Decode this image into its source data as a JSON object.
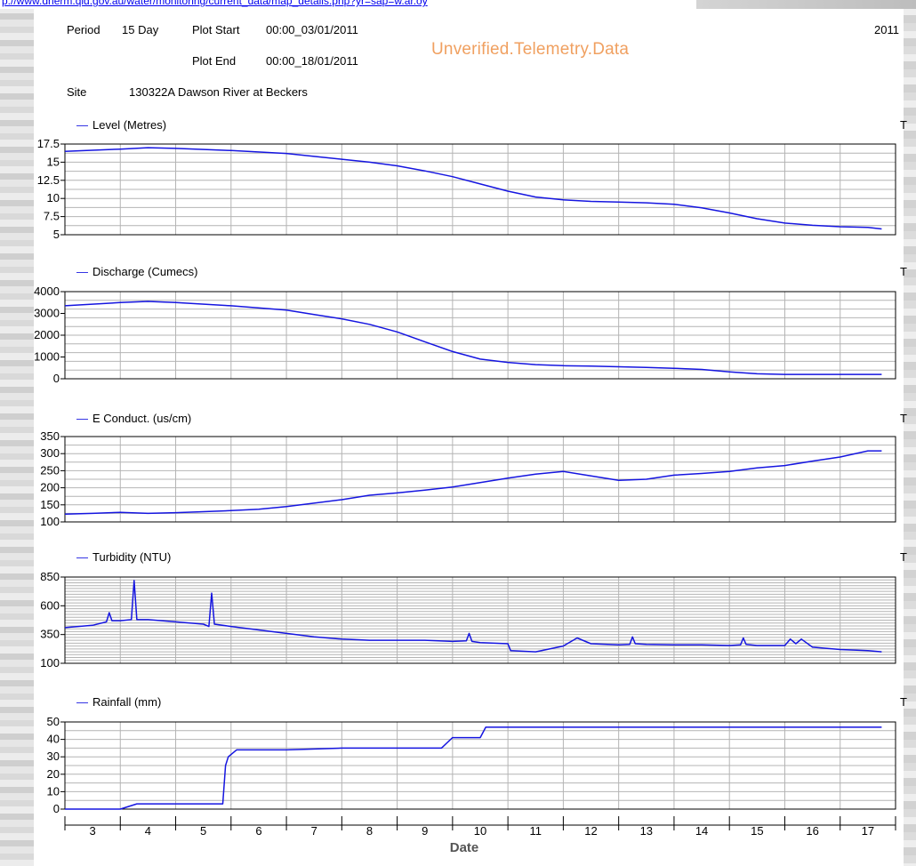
{
  "page": {
    "url_fragment": "p://www.dnerm.qld.gov.au/water/monitoring/current_data/map_details.php?yr=sap=w.ar.oy",
    "watermark": "Unverified.Telemetry.Data",
    "year": "2011",
    "period_label": "Period",
    "period_value": "15 Day",
    "plot_start_label": "Plot Start",
    "plot_start_value": "00:00_03/01/2011",
    "plot_end_label": "Plot End",
    "plot_end_value": "00:00_18/01/2011",
    "site_label": "Site",
    "site_value": "130322A  Dawson River at Beckers",
    "panel_marker": "T",
    "legend_dash": "—",
    "colors": {
      "line": "#1515e0",
      "grid": "#b4b4b4",
      "frame": "#000000",
      "watermark": "#f0a060",
      "link": "#0000ee"
    }
  },
  "chart_data": [
    {
      "type": "line",
      "series_name": "Level (Metres)",
      "ylim": [
        5,
        17.5
      ],
      "yticks": [
        5,
        7.5,
        10,
        12.5,
        15,
        17.5
      ],
      "ytick_labels": [
        "5",
        "7.5",
        "10",
        "12.5",
        "15",
        "17.5"
      ],
      "xlim": [
        3,
        18
      ],
      "x": [
        3.0,
        4.0,
        4.5,
        5.0,
        6.0,
        7.0,
        7.5,
        8.0,
        8.5,
        9.0,
        9.5,
        10.0,
        10.5,
        11.0,
        11.5,
        12.0,
        12.5,
        13.0,
        13.5,
        14.0,
        14.5,
        15.0,
        15.5,
        16.0,
        16.5,
        17.0,
        17.5,
        17.75
      ],
      "y": [
        16.5,
        16.8,
        17.0,
        16.9,
        16.6,
        16.2,
        15.8,
        15.4,
        15.0,
        14.5,
        13.8,
        13.0,
        12.0,
        11.0,
        10.2,
        9.8,
        9.6,
        9.5,
        9.4,
        9.2,
        8.7,
        8.0,
        7.2,
        6.6,
        6.3,
        6.1,
        6.0,
        5.8
      ]
    },
    {
      "type": "line",
      "series_name": "Discharge (Cumecs)",
      "ylim": [
        0,
        4000
      ],
      "yticks": [
        0,
        1000,
        2000,
        3000,
        4000
      ],
      "ytick_labels": [
        "0",
        "1000",
        "2000",
        "3000",
        "4000"
      ],
      "xlim": [
        3,
        18
      ],
      "x": [
        3.0,
        4.0,
        4.5,
        5.0,
        6.0,
        7.0,
        7.5,
        8.0,
        8.5,
        9.0,
        9.5,
        10.0,
        10.5,
        11.0,
        11.5,
        12.0,
        12.5,
        13.0,
        13.5,
        14.0,
        14.5,
        15.0,
        15.5,
        16.0,
        16.5,
        17.0,
        17.5,
        17.75
      ],
      "y": [
        3350,
        3500,
        3550,
        3500,
        3350,
        3150,
        2950,
        2750,
        2500,
        2150,
        1700,
        1250,
        900,
        750,
        650,
        600,
        580,
        550,
        520,
        480,
        430,
        320,
        230,
        200,
        200,
        200,
        200,
        200
      ]
    },
    {
      "type": "line",
      "series_name": "E Conduct. (us/cm)",
      "ylim": [
        100,
        350
      ],
      "yticks": [
        100,
        150,
        200,
        250,
        300,
        350
      ],
      "ytick_labels": [
        "100",
        "150",
        "200",
        "250",
        "300",
        "350"
      ],
      "xlim": [
        3,
        18
      ],
      "x": [
        3.0,
        3.5,
        4.0,
        4.5,
        5.0,
        5.5,
        6.0,
        6.5,
        7.0,
        7.5,
        8.0,
        8.5,
        9.0,
        9.5,
        10.0,
        10.5,
        11.0,
        11.5,
        12.0,
        12.5,
        13.0,
        13.5,
        14.0,
        14.5,
        15.0,
        15.5,
        16.0,
        16.5,
        17.0,
        17.5,
        17.75
      ],
      "y": [
        123,
        125,
        128,
        125,
        127,
        130,
        133,
        137,
        145,
        155,
        165,
        178,
        185,
        193,
        202,
        215,
        228,
        240,
        248,
        235,
        222,
        225,
        237,
        242,
        248,
        258,
        265,
        278,
        290,
        308,
        308
      ]
    },
    {
      "type": "line",
      "series_name": "Turbidity (NTU)",
      "ylim": [
        100,
        850
      ],
      "yticks": [
        100,
        350,
        600,
        850
      ],
      "ytick_labels": [
        "100",
        "350",
        "600",
        "850"
      ],
      "xlim": [
        3,
        18
      ],
      "x": [
        3.0,
        3.5,
        3.75,
        3.8,
        3.85,
        4.0,
        4.2,
        4.25,
        4.3,
        4.5,
        5.0,
        5.5,
        5.6,
        5.65,
        5.7,
        6.0,
        6.5,
        7.0,
        7.5,
        8.0,
        8.5,
        9.0,
        9.5,
        10.0,
        10.25,
        10.3,
        10.35,
        10.5,
        11.0,
        11.05,
        11.5,
        12.0,
        12.25,
        12.5,
        13.0,
        13.2,
        13.25,
        13.3,
        13.5,
        14.0,
        14.5,
        15.0,
        15.2,
        15.25,
        15.3,
        15.5,
        16.0,
        16.1,
        16.2,
        16.3,
        16.5,
        17.0,
        17.5,
        17.75
      ],
      "y": [
        410,
        430,
        460,
        540,
        470,
        470,
        480,
        820,
        480,
        480,
        460,
        440,
        420,
        710,
        440,
        420,
        390,
        360,
        330,
        310,
        300,
        300,
        300,
        290,
        295,
        360,
        290,
        280,
        270,
        210,
        200,
        250,
        320,
        270,
        260,
        265,
        330,
        270,
        265,
        260,
        260,
        255,
        260,
        320,
        265,
        255,
        255,
        310,
        270,
        310,
        240,
        220,
        210,
        200
      ]
    },
    {
      "type": "line",
      "series_name": "Rainfall (mm)",
      "ylim": [
        0,
        50
      ],
      "yticks": [
        0,
        10,
        20,
        30,
        40,
        50
      ],
      "ytick_labels": [
        "0",
        "10",
        "20",
        "30",
        "40",
        "50"
      ],
      "xlim": [
        3,
        18
      ],
      "x": [
        3.0,
        4.0,
        4.3,
        5.85,
        5.9,
        5.95,
        6.1,
        6.5,
        7.0,
        8.0,
        9.0,
        9.8,
        9.9,
        10.0,
        10.5,
        10.6,
        11.0,
        12.0,
        13.0,
        14.0,
        15.0,
        16.0,
        17.0,
        17.75
      ],
      "y": [
        0,
        0,
        3,
        3,
        25,
        30,
        34,
        34,
        34,
        35,
        35,
        35,
        38,
        41,
        41,
        47,
        47,
        47,
        47,
        47,
        47,
        47,
        47,
        47
      ]
    }
  ],
  "x_axis": {
    "label": "Date",
    "tick_labels": [
      "3",
      "4",
      "5",
      "6",
      "7",
      "8",
      "9",
      "10",
      "11",
      "12",
      "13",
      "14",
      "15",
      "16",
      "17"
    ],
    "tick_values": [
      3,
      4,
      5,
      6,
      7,
      8,
      9,
      10,
      11,
      12,
      13,
      14,
      15,
      16,
      17
    ]
  }
}
